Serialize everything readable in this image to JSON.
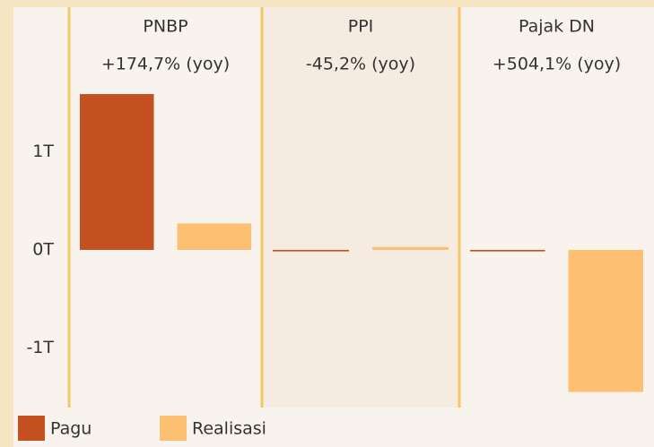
{
  "chart_data": {
    "type": "bar",
    "categories": [
      "PNBP",
      "PPI",
      "Pajak DN"
    ],
    "subtitles": [
      "+174,7% (yoy)",
      "-45,2% (yoy)",
      "+504,1% (yoy)"
    ],
    "series": [
      {
        "name": "Pagu",
        "color": "#c4501f",
        "values": [
          1.59,
          -0.015,
          -0.015
        ]
      },
      {
        "name": "Realisasi",
        "color": "#fdbf72",
        "values": [
          0.27,
          0.03,
          -1.45
        ]
      }
    ],
    "ylim": [
      -1.6,
      1.7
    ],
    "yticks": [
      {
        "value": -1,
        "label": "-1T"
      },
      {
        "value": 0,
        "label": "0T"
      },
      {
        "value": 1,
        "label": "1T"
      }
    ]
  }
}
